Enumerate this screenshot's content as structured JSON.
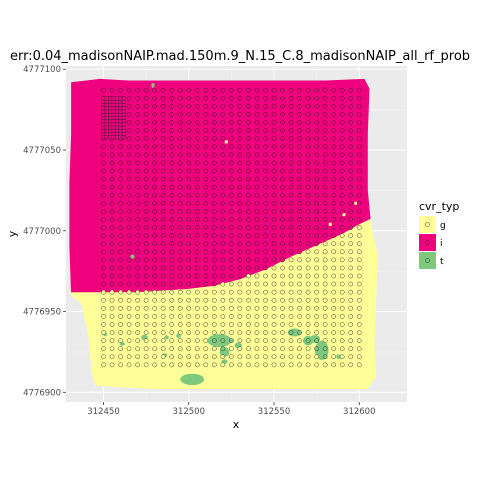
{
  "chart_data": {
    "type": "raster-with-points",
    "title": "err:0.04_madisonNAIP.mad.150m.9_N.15_C.8_madisonNAIP_all_rf_prob",
    "xlabel": "x",
    "ylabel": "y",
    "xlim": [
      312428,
      312628
    ],
    "ylim": [
      4776894,
      4777102
    ],
    "x_ticks": [
      312450,
      312500,
      312550,
      312600
    ],
    "y_ticks": [
      4776900,
      4776950,
      4777000,
      4777050,
      4777100
    ],
    "x_tick_labels": [
      "312450",
      "312500",
      "312550",
      "312600"
    ],
    "y_tick_labels": [
      "4776900",
      "4776950",
      "4777000",
      "4777050",
      "4777100"
    ],
    "grid": true,
    "legend": {
      "title": "cvr_typ",
      "placement": "right",
      "entries": [
        {
          "label": "g",
          "color": "#ffff99"
        },
        {
          "label": "i",
          "color": "#f0027f"
        },
        {
          "label": "t",
          "color": "#7fc97f"
        }
      ]
    },
    "raster": {
      "outline": [
        [
          312431,
          4777092
        ],
        [
          312448,
          4777094
        ],
        [
          312465,
          4777093
        ],
        [
          312500,
          4777093
        ],
        [
          312540,
          4777093
        ],
        [
          312580,
          4777093
        ],
        [
          312603,
          4777094
        ],
        [
          312606,
          4777088
        ],
        [
          312605,
          4777060
        ],
        [
          312605,
          4777025
        ],
        [
          312607,
          4777003
        ],
        [
          312611,
          4776985
        ],
        [
          312610,
          4776960
        ],
        [
          312609,
          4776930
        ],
        [
          312610,
          4776910
        ],
        [
          312605,
          4776902
        ],
        [
          312560,
          4776902
        ],
        [
          312520,
          4776902
        ],
        [
          312480,
          4776902
        ],
        [
          312460,
          4776903
        ],
        [
          312445,
          4776904
        ],
        [
          312443,
          4776912
        ],
        [
          312441,
          4776935
        ],
        [
          312437,
          4776955
        ],
        [
          312431,
          4776960
        ],
        [
          312430,
          4776990
        ],
        [
          312430,
          4777030
        ],
        [
          312431,
          4777060
        ]
      ],
      "boundary_i_g": [
        [
          312428,
          4776962
        ],
        [
          312450,
          4776962
        ],
        [
          312470,
          4776962
        ],
        [
          312485,
          4776963
        ],
        [
          312500,
          4776964
        ],
        [
          312515,
          4776966
        ],
        [
          312530,
          4776970
        ],
        [
          312545,
          4776976
        ],
        [
          312560,
          4776984
        ],
        [
          312575,
          4776991
        ],
        [
          312590,
          4776998
        ],
        [
          312600,
          4777004
        ],
        [
          312608,
          4777008
        ],
        [
          312615,
          4777010
        ]
      ],
      "tree_patches": [
        {
          "cx": 312518,
          "cy": 4776932,
          "rx": 7,
          "ry": 4
        },
        {
          "cx": 312521,
          "cy": 4776925,
          "rx": 3,
          "ry": 3
        },
        {
          "cx": 312562,
          "cy": 4776937,
          "rx": 4,
          "ry": 2.5
        },
        {
          "cx": 312570,
          "cy": 4776932,
          "rx": 3,
          "ry": 3
        },
        {
          "cx": 312578,
          "cy": 4776926,
          "rx": 4,
          "ry": 6
        },
        {
          "cx": 312574,
          "cy": 4776933,
          "rx": 3,
          "ry": 2.5
        },
        {
          "cx": 312502,
          "cy": 4776908,
          "rx": 7,
          "ry": 3.5
        },
        {
          "cx": 312474,
          "cy": 4776934,
          "rx": 2,
          "ry": 1.6
        },
        {
          "cx": 312487,
          "cy": 4776934,
          "rx": 1.3,
          "ry": 1.3
        },
        {
          "cx": 312494,
          "cy": 4776935,
          "rx": 1.4,
          "ry": 1.4
        },
        {
          "cx": 312529,
          "cy": 4776929,
          "rx": 2.2,
          "ry": 1.8
        },
        {
          "cx": 312521,
          "cy": 4776919,
          "rx": 1.8,
          "ry": 1.4
        },
        {
          "cx": 312486,
          "cy": 4776923,
          "rx": 1.5,
          "ry": 1.2
        },
        {
          "cx": 312461,
          "cy": 4776930,
          "rx": 1.5,
          "ry": 1.2
        },
        {
          "cx": 312451,
          "cy": 4776936,
          "rx": 1.2,
          "ry": 1.2
        },
        {
          "cx": 312588,
          "cy": 4776922,
          "rx": 1.5,
          "ry": 1.5
        },
        {
          "cx": 312467,
          "cy": 4776984,
          "rx": 1.2,
          "ry": 1.2
        },
        {
          "cx": 312479,
          "cy": 4777090,
          "rx": 1,
          "ry": 1.5
        }
      ],
      "bright_spots": [
        [
          312522,
          4777055
        ],
        [
          312583,
          4777004
        ],
        [
          312591,
          4777010
        ],
        [
          312598,
          4777017
        ]
      ]
    },
    "points": {
      "grid_x_start": 312450,
      "grid_x_end": 312600,
      "grid_y_start": 4776917,
      "grid_y_end": 4777087,
      "spacing": 5,
      "dense_block": {
        "x": [
          312450,
          312463
        ],
        "y": [
          4777058,
          4777083
        ],
        "spacing": 2
      },
      "class_boundary": "raster"
    }
  }
}
